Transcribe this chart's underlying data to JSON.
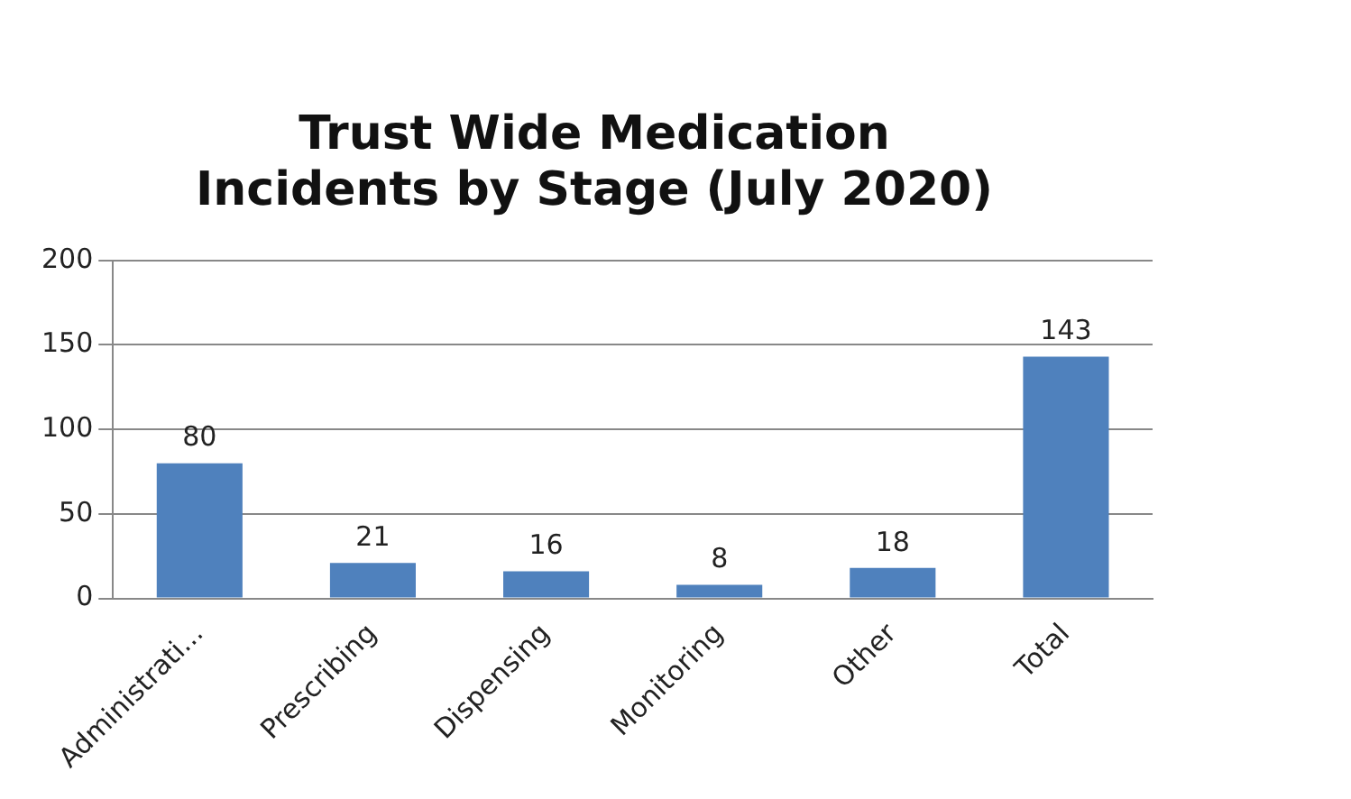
{
  "chart_data": {
    "type": "bar",
    "title": "Trust Wide Medication Incidents by Stage (July 2020)",
    "categories": [
      "Administrati...",
      "Prescribing",
      "Dispensing",
      "Monitoring",
      "Other",
      "Total"
    ],
    "values": [
      80,
      21,
      16,
      8,
      18,
      143
    ],
    "color": "#4f81bd",
    "ylim": [
      0,
      200
    ],
    "yticks": [
      0,
      50,
      100,
      150,
      200
    ],
    "grid": "y",
    "data_labels": true,
    "legend": false
  }
}
